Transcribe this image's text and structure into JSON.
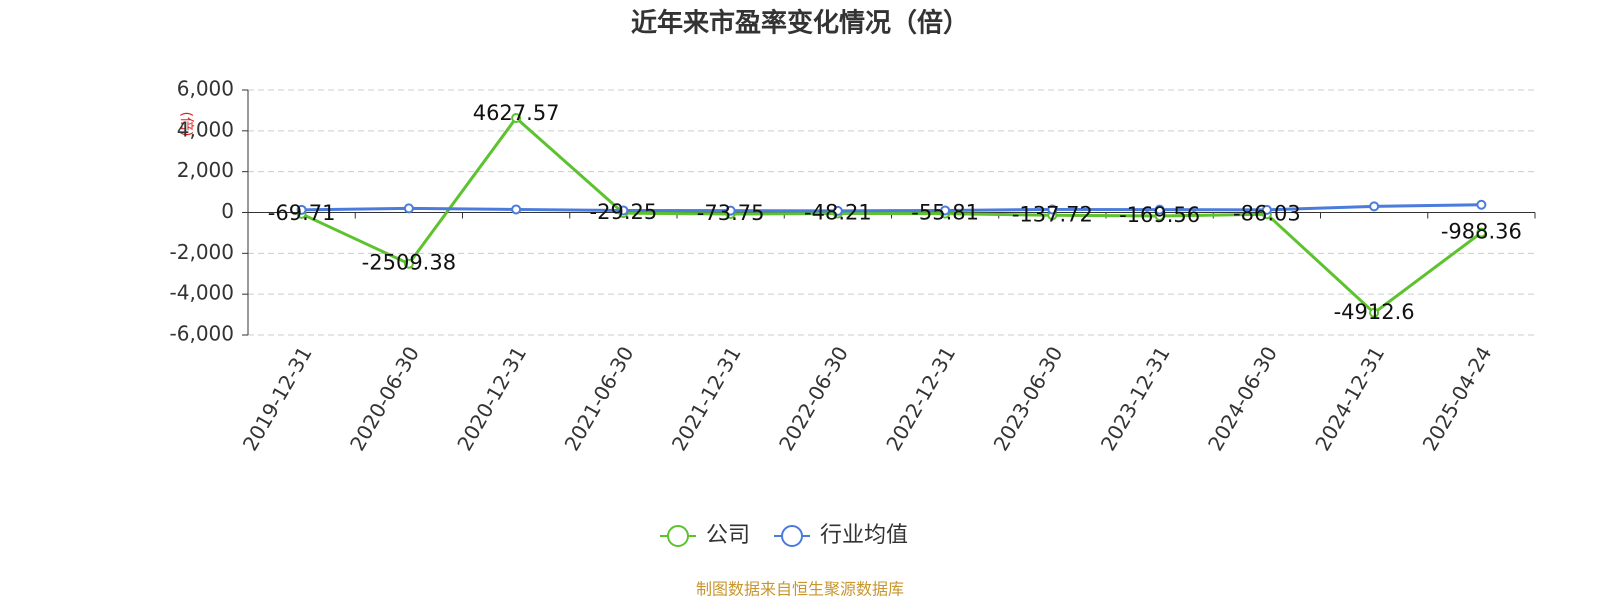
{
  "chart_data": {
    "type": "line",
    "title": "近年来市盈率变化情况（倍）",
    "y_axis_label": "(倍)",
    "categories": [
      "2019-12-31",
      "2020-06-30",
      "2020-12-31",
      "2021-06-30",
      "2021-12-31",
      "2022-06-30",
      "2022-12-31",
      "2023-06-30",
      "2023-12-31",
      "2024-06-30",
      "2024-12-31",
      "2025-04-24"
    ],
    "series": [
      {
        "name": "公司",
        "color": "#5cc22d",
        "show_labels": true,
        "values": [
          -69.71,
          -2509.38,
          4627.57,
          -29.25,
          -73.75,
          -48.21,
          -55.81,
          -137.72,
          -169.56,
          -86.03,
          -4912.6,
          -988.36
        ]
      },
      {
        "name": "行业均值",
        "color": "#4b7bdc",
        "show_labels": false,
        "values": [
          130,
          200,
          150,
          100,
          90,
          80,
          100,
          150,
          140,
          130,
          300,
          380
        ]
      }
    ],
    "ylim": [
      -6000,
      6000
    ],
    "yticks": [
      {
        "value": 6000,
        "label": "6,000"
      },
      {
        "value": 4000,
        "label": "4,000"
      },
      {
        "value": 2000,
        "label": "2,000"
      },
      0,
      {
        "value": -2000,
        "label": "-2,000"
      },
      {
        "value": -4000,
        "label": "-4,000"
      },
      {
        "value": -6000,
        "label": "-6,000"
      }
    ],
    "grid": true,
    "source": "制图数据来自恒生聚源数据库"
  }
}
